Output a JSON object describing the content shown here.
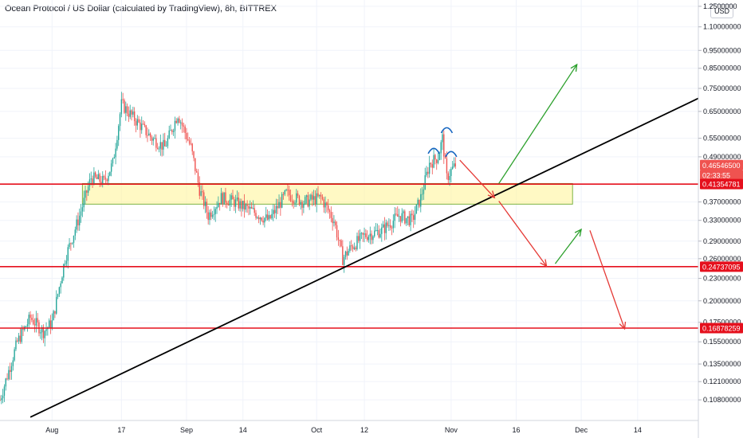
{
  "header": {
    "title": "Ocean Protocol / US Dollar (calculated by TradingView), 8h, BITTREX",
    "currency_button": "USD"
  },
  "chart_data": {
    "type": "candlestick",
    "y_scale": "log",
    "ylim": [
      0.095,
      1.3
    ],
    "xlim": [
      "2020-07-20",
      "2020-12-28"
    ],
    "y_ticks": [
      {
        "label": "1.2500000",
        "value": 1.25
      },
      {
        "label": "1.10000000",
        "value": 1.1
      },
      {
        "label": "0.95000000",
        "value": 0.95
      },
      {
        "label": "0.85000000",
        "value": 0.85
      },
      {
        "label": "0.75000000",
        "value": 0.75
      },
      {
        "label": "0.65000000",
        "value": 0.65
      },
      {
        "label": "0.55000000",
        "value": 0.55
      },
      {
        "label": "0.49000000",
        "value": 0.49
      },
      {
        "label": "0.37000000",
        "value": 0.37
      },
      {
        "label": "0.33000000",
        "value": 0.33
      },
      {
        "label": "0.29000000",
        "value": 0.29
      },
      {
        "label": "0.26000000",
        "value": 0.26
      },
      {
        "label": "0.23000000",
        "value": 0.23
      },
      {
        "label": "0.20000000",
        "value": 0.2
      },
      {
        "label": "0.17500000",
        "value": 0.175
      },
      {
        "label": "0.15500000",
        "value": 0.155
      },
      {
        "label": "0.13500000",
        "value": 0.135
      },
      {
        "label": "0.12100000",
        "value": 0.121
      },
      {
        "label": "0.10800000",
        "value": 0.108
      }
    ],
    "x_ticks": [
      {
        "label": "Aug",
        "date": "2020-08-01"
      },
      {
        "label": "17",
        "date": "2020-08-17"
      },
      {
        "label": "Sep",
        "date": "2020-09-01"
      },
      {
        "label": "14",
        "date": "2020-09-14"
      },
      {
        "label": "Oct",
        "date": "2020-10-01"
      },
      {
        "label": "12",
        "date": "2020-10-12"
      },
      {
        "label": "Nov",
        "date": "2020-11-01"
      },
      {
        "label": "16",
        "date": "2020-11-16"
      },
      {
        "label": "Dec",
        "date": "2020-12-01"
      },
      {
        "label": "14",
        "date": "2020-12-14"
      }
    ],
    "price_tags": [
      {
        "label": "0.46546500",
        "value": 0.4655,
        "color": "#ef5350"
      },
      {
        "label": "02:33:55",
        "value": 0.437,
        "color": "#ef5350"
      },
      {
        "label": "0.41354781",
        "value": 0.41354781,
        "color": "#e5101d"
      },
      {
        "label": "0.24737095",
        "value": 0.24737095,
        "color": "#e5101d"
      },
      {
        "label": "0.16878259",
        "value": 0.16878259,
        "color": "#e5101d"
      }
    ],
    "horizontal_levels": [
      0.41354781,
      0.24737095,
      0.16878259
    ],
    "support_zone": {
      "from_date": "2020-08-08",
      "to_date": "2020-11-29",
      "low": 0.365,
      "high": 0.415
    },
    "trendline": {
      "from": {
        "date": "2020-07-27",
        "price": 0.097
      },
      "to": {
        "date": "2020-12-28",
        "price": 0.705
      }
    },
    "arrows": [
      {
        "color": "#2ca02c",
        "from": {
          "date": "2020-11-12",
          "price": 0.415
        },
        "to": {
          "date": "2020-11-30",
          "price": 0.87
        }
      },
      {
        "color": "#e53935",
        "from": {
          "date": "2020-11-03",
          "price": 0.48
        },
        "to": {
          "date": "2020-11-11",
          "price": 0.38
        }
      },
      {
        "color": "#e53935",
        "from": {
          "date": "2020-11-12",
          "price": 0.372
        },
        "to": {
          "date": "2020-11-23",
          "price": 0.248
        }
      },
      {
        "color": "#2ca02c",
        "from": {
          "date": "2020-11-25",
          "price": 0.252
        },
        "to": {
          "date": "2020-12-01",
          "price": 0.312
        }
      },
      {
        "color": "#e53935",
        "from": {
          "date": "2020-12-03",
          "price": 0.31
        },
        "to": {
          "date": "2020-12-11",
          "price": 0.168
        }
      }
    ],
    "head_shoulders_arcs": [
      {
        "center_date": "2020-10-28",
        "price": 0.51
      },
      {
        "center_date": "2020-10-31",
        "price": 0.58
      },
      {
        "center_date": "2020-11-01",
        "price": 0.5
      }
    ],
    "colors": {
      "up": "#26a69a",
      "down": "#ef5350",
      "zone_fill": "#fff59d",
      "zone_border": "#7cb342",
      "level": "#e5101d",
      "trend": "#000000",
      "arc": "#1565c0"
    },
    "candles_generated": "synthetic series following the visible path"
  }
}
